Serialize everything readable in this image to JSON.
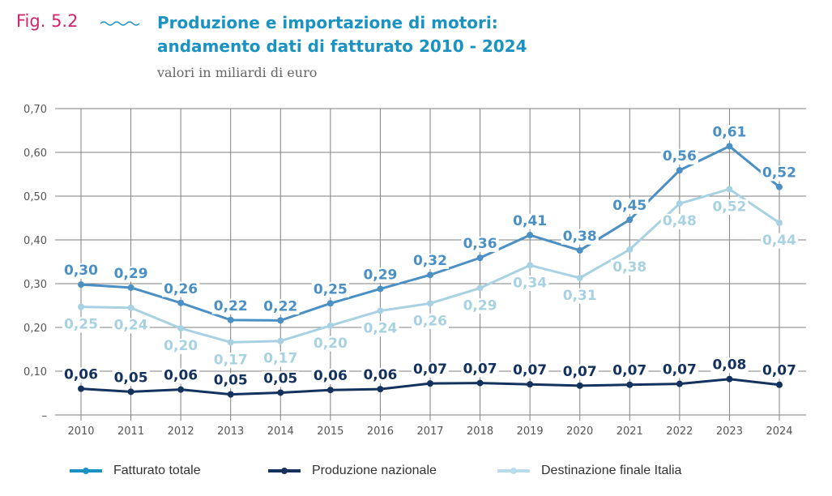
{
  "header": {
    "figure_label": "Fig. 5.2",
    "title_line1": "Produzione e importazione di motori:",
    "title_line2": "andamento dati di fatturato 2010 - 2024",
    "subtitle": "valori in miliardi di euro"
  },
  "colors": {
    "figure_label": "#d0246b",
    "title": "#1a93c2",
    "fatturato_totale": "#4a90c4",
    "produzione_nazionale": "#14325e",
    "destinazione_finale": "#a8d2e2",
    "grid": "#808080"
  },
  "chart_data": {
    "type": "line",
    "title": "Produzione e importazione di motori: andamento dati di fatturato 2010 - 2024",
    "subtitle": "valori in miliardi di euro",
    "xlabel": "",
    "ylabel": "",
    "x": [
      "2010",
      "2011",
      "2012",
      "2013",
      "2014",
      "2015",
      "2016",
      "2017",
      "2018",
      "2019",
      "2020",
      "2021",
      "2022",
      "2023",
      "2024"
    ],
    "ylim": [
      0,
      0.7
    ],
    "yticks": [
      0,
      0.1,
      0.2,
      0.3,
      0.4,
      0.5,
      0.6,
      0.7
    ],
    "ytick_labels": [
      "–",
      "0,10",
      "0,20",
      "0,30",
      "0,40",
      "0,50",
      "0,60",
      "0,70"
    ],
    "grid": true,
    "legend_position": "bottom",
    "series": [
      {
        "name": "Fatturato totale",
        "color": "#4a90c4",
        "values": [
          0.298,
          0.291,
          0.256,
          0.217,
          0.216,
          0.255,
          0.288,
          0.32,
          0.359,
          0.411,
          0.376,
          0.446,
          0.559,
          0.614,
          0.521
        ],
        "labels": [
          "0,30",
          "0,29",
          "0,26",
          "0,22",
          "0,22",
          "0,25",
          "0,29",
          "0,32",
          "0,36",
          "0,41",
          "0,38",
          "0,45",
          "0,56",
          "0,61",
          "0,52"
        ]
      },
      {
        "name": "Produzione nazionale",
        "color": "#14325e",
        "values": [
          0.06,
          0.053,
          0.058,
          0.047,
          0.051,
          0.057,
          0.059,
          0.072,
          0.073,
          0.07,
          0.067,
          0.069,
          0.071,
          0.082,
          0.069
        ],
        "labels": [
          "0,06",
          "0,05",
          "0,06",
          "0,05",
          "0,05",
          "0,06",
          "0,06",
          "0,07",
          "0,07",
          "0,07",
          "0,07",
          "0,07",
          "0,07",
          "0,08",
          "0,07"
        ]
      },
      {
        "name": "Destinazione finale Italia",
        "color": "#a8d2e2",
        "values": [
          0.247,
          0.245,
          0.198,
          0.166,
          0.169,
          0.204,
          0.238,
          0.255,
          0.29,
          0.342,
          0.313,
          0.378,
          0.483,
          0.516,
          0.439
        ],
        "labels": [
          "0,25",
          "0,24",
          "0,20",
          "0,17",
          "0,17",
          "0,20",
          "0,24",
          "0,26",
          "0,29",
          "0,34",
          "0,31",
          "0,38",
          "0,48",
          "0,52",
          "0,44"
        ]
      }
    ]
  },
  "legend": [
    {
      "label": "Fatturato totale",
      "color": "#1a93c2"
    },
    {
      "label": "Produzione nazionale",
      "color": "#14325e"
    },
    {
      "label": "Destinazione finale Italia",
      "color": "#b8dcec"
    }
  ]
}
